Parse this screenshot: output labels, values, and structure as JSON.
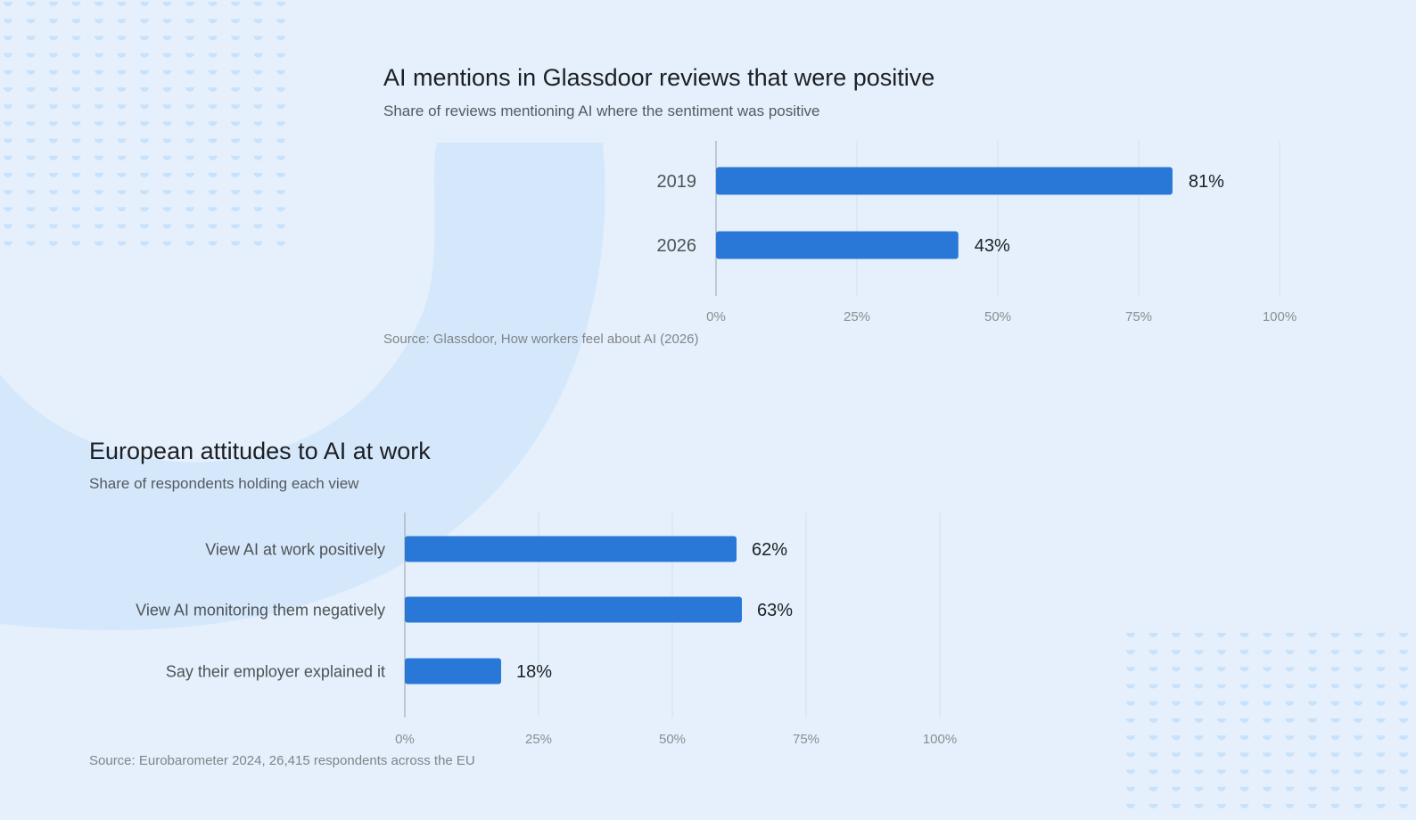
{
  "charts": [
    {
      "title": "AI mentions in Glassdoor reviews that were positive",
      "subtitle": "Share of reviews mentioning AI where the sentiment was positive",
      "source": "Source: Glassdoor, How workers feel about AI (2026)"
    },
    {
      "title": "European attitudes to AI at work",
      "subtitle": "Share of respondents holding each view",
      "source": "Source: Eurobarometer 2024, 26,415 respondents across the EU"
    }
  ],
  "colors": {
    "background": "#e5f0fc",
    "bar": "#2977d6",
    "gridline": "#d8e0e8",
    "axis": "#9aa0a6",
    "decoration": "#c8e2fb"
  },
  "chart_data": [
    {
      "type": "bar",
      "orientation": "horizontal",
      "title": "AI mentions in Glassdoor reviews that were positive",
      "subtitle": "Share of reviews mentioning AI where the sentiment was positive",
      "categories": [
        "2019",
        "2026"
      ],
      "values": [
        81,
        43
      ],
      "value_labels": [
        "81%",
        "43%"
      ],
      "xlim": [
        0,
        100
      ],
      "ticks": [
        0,
        25,
        50,
        75,
        100
      ],
      "tick_labels": [
        "0%",
        "25%",
        "50%",
        "75%",
        "100%"
      ],
      "grid": true,
      "legend": "none"
    },
    {
      "type": "bar",
      "orientation": "horizontal",
      "title": "European attitudes to AI at work",
      "subtitle": "Share of respondents holding each view",
      "categories": [
        "View AI at work positively",
        "View AI monitoring them negatively",
        "Say their employer explained it"
      ],
      "values": [
        62,
        63,
        18
      ],
      "value_labels": [
        "62%",
        "63%",
        "18%"
      ],
      "xlim": [
        0,
        100
      ],
      "ticks": [
        0,
        25,
        50,
        75,
        100
      ],
      "tick_labels": [
        "0%",
        "25%",
        "50%",
        "75%",
        "100%"
      ],
      "grid": true,
      "legend": "none"
    }
  ]
}
